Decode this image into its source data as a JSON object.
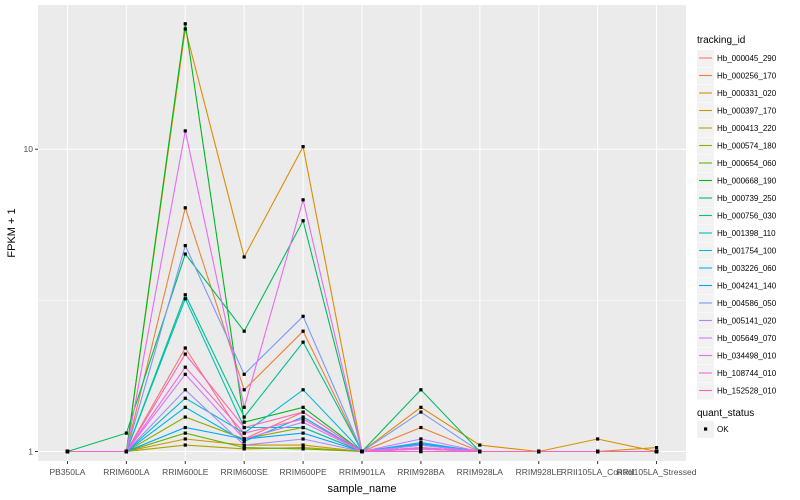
{
  "chart_data": {
    "type": "line",
    "xlabel": "sample_name",
    "ylabel": "FPKM + 1",
    "y_scale": "log10",
    "ylim": [
      0.93,
      30
    ],
    "y_ticks": [
      1,
      10
    ],
    "grid": true,
    "panel_background": "#ebebeb",
    "legend_position": "right",
    "categories": [
      "PB350LA",
      "RRIM600LA",
      "RRIM600LE",
      "RRIM600SE",
      "RRIM600PE",
      "RRIM901LA",
      "RRIM928BA",
      "RRIM928LA",
      "RRIM928LE",
      "RRII105LA_Control",
      "RRII105LA_Stressed"
    ],
    "legend_title": "tracking_id",
    "series": [
      {
        "name": "Hb_000045_290",
        "color": "#F8766D",
        "values": [
          1,
          1,
          2.2,
          1.1,
          1.35,
          1,
          1.03,
          1,
          1,
          1,
          1
        ]
      },
      {
        "name": "Hb_000256_170",
        "color": "#EC8239",
        "values": [
          1,
          1,
          6.4,
          1.6,
          2.5,
          1,
          1.2,
          1,
          1,
          1,
          1
        ]
      },
      {
        "name": "Hb_000331_020",
        "color": "#DB8E00",
        "values": [
          1,
          1,
          25,
          4.4,
          10.2,
          1,
          1.4,
          1.05,
          1,
          1.1,
          1
        ]
      },
      {
        "name": "Hb_000397_170",
        "color": "#C79800",
        "values": [
          1,
          1,
          1.1,
          1.05,
          1.05,
          1,
          1,
          1,
          1,
          1,
          1.03
        ]
      },
      {
        "name": "Hb_000413_220",
        "color": "#AEA200",
        "values": [
          1,
          1,
          1.05,
          1.02,
          1.03,
          1,
          1,
          1,
          1,
          1,
          1
        ]
      },
      {
        "name": "Hb_000574_180",
        "color": "#8FAA00",
        "values": [
          1,
          1,
          1.3,
          1.1,
          1.2,
          1,
          1,
          1,
          1,
          1,
          1
        ]
      },
      {
        "name": "Hb_000654_060",
        "color": "#64B200",
        "values": [
          1,
          1,
          1.15,
          1.03,
          1.02,
          1,
          1,
          1,
          1,
          1,
          1
        ]
      },
      {
        "name": "Hb_000668_190",
        "color": "#00B81B",
        "values": [
          1,
          1,
          26,
          1.25,
          1.4,
          1,
          1.02,
          1,
          1,
          1,
          1
        ]
      },
      {
        "name": "Hb_000739_250",
        "color": "#00BD5C",
        "values": [
          1,
          1.15,
          4.5,
          2.5,
          5.8,
          1,
          1.6,
          1,
          1,
          1,
          1
        ]
      },
      {
        "name": "Hb_000756_030",
        "color": "#00C08E",
        "values": [
          1,
          1,
          3.3,
          1.3,
          2.3,
          1,
          1.05,
          1,
          1,
          1,
          1
        ]
      },
      {
        "name": "Hb_001398_110",
        "color": "#00C1B2",
        "values": [
          1,
          1,
          3.2,
          1.2,
          1.2,
          1,
          1,
          1,
          1,
          1,
          1
        ]
      },
      {
        "name": "Hb_001754_100",
        "color": "#00BCD1",
        "values": [
          1,
          1,
          1.5,
          1.15,
          1.6,
          1,
          1.07,
          1,
          1,
          1,
          1
        ]
      },
      {
        "name": "Hb_003226_060",
        "color": "#00B3EB",
        "values": [
          1,
          1,
          1.4,
          1.08,
          1.3,
          1,
          1.05,
          1,
          1,
          1,
          1
        ]
      },
      {
        "name": "Hb_004241_140",
        "color": "#00A5FF",
        "values": [
          1,
          1,
          1.2,
          1.1,
          1.15,
          1,
          1.06,
          1,
          1,
          1,
          1
        ]
      },
      {
        "name": "Hb_004586_050",
        "color": "#7997FF",
        "values": [
          1,
          1,
          4.8,
          1.8,
          2.8,
          1,
          1.35,
          1,
          1,
          1,
          1
        ]
      },
      {
        "name": "Hb_005141_020",
        "color": "#AC88FF",
        "values": [
          1,
          1,
          1.6,
          1.05,
          1.1,
          1,
          1.05,
          1,
          1,
          1,
          1
        ]
      },
      {
        "name": "Hb_005649_070",
        "color": "#CF78FF",
        "values": [
          1,
          1,
          1.8,
          1.1,
          1.25,
          1,
          1.1,
          1,
          1,
          1,
          1
        ]
      },
      {
        "name": "Hb_034498_010",
        "color": "#E76BF3",
        "values": [
          1,
          1,
          11.5,
          1.4,
          6.8,
          1,
          1.02,
          1,
          1,
          1,
          1
        ]
      },
      {
        "name": "Hb_108744_010",
        "color": "#F767D8",
        "values": [
          1,
          1,
          1.9,
          1.15,
          1.28,
          1,
          1.03,
          1,
          1,
          1,
          1
        ]
      },
      {
        "name": "Hb_152528_010",
        "color": "#FF61C3",
        "values": [
          1,
          1,
          2.1,
          1.2,
          1.35,
          1,
          1,
          1,
          1,
          1,
          1
        ]
      }
    ],
    "legend_entries": [
      "Hb_000045_290",
      "Hb_000256_170",
      "Hb_000331_020",
      "Hb_000397_170",
      "Hb_000413_220",
      "Hb_000574_180",
      "Hb_000654_060",
      "Hb_000668_190",
      "Hb_000739_250",
      "Hb_000756_030",
      "Hb_001398_110",
      "Hb_001754_100",
      "Hb_003226_060",
      "Hb_004241_140",
      "Hb_004586_050",
      "Hb_005141_020",
      "Hb_005649_070",
      "Hb_034498_010",
      "Hb_108744_010",
      "Hb_152528_010"
    ],
    "shape_legend": {
      "title": "quant_status",
      "entries": [
        "OK"
      ]
    }
  }
}
